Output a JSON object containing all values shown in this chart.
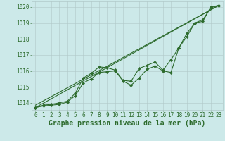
{
  "xlabel": "Graphe pression niveau de la mer (hPa)",
  "background_color": "#cce9e9",
  "grid_color": "#b0c8c8",
  "line_color": "#2d6b2d",
  "xlim": [
    -0.5,
    23.5
  ],
  "ylim": [
    1013.55,
    1020.35
  ],
  "yticks": [
    1014,
    1015,
    1016,
    1017,
    1018,
    1019,
    1020
  ],
  "xticks": [
    0,
    1,
    2,
    3,
    4,
    5,
    6,
    7,
    8,
    9,
    10,
    11,
    12,
    13,
    14,
    15,
    16,
    17,
    18,
    19,
    20,
    21,
    22,
    23
  ],
  "series": [
    {
      "x": [
        0,
        23
      ],
      "y": [
        1013.7,
        1020.1
      ],
      "style": "solid",
      "marker": null,
      "linewidth": 0.8
    },
    {
      "x": [
        0,
        1,
        2,
        3,
        4,
        5,
        6,
        7,
        8,
        9,
        10,
        11,
        12,
        13,
        14,
        15,
        16,
        17,
        18,
        19,
        20,
        21,
        22,
        23
      ],
      "y": [
        1013.7,
        1013.8,
        1013.85,
        1013.9,
        1014.05,
        1014.45,
        1015.25,
        1015.5,
        1015.9,
        1015.95,
        1016.0,
        1015.35,
        1015.1,
        1015.55,
        1016.1,
        1016.3,
        1016.0,
        1015.9,
        1017.45,
        1018.15,
        1019.0,
        1019.1,
        1020.0,
        1020.1
      ],
      "style": "solid",
      "marker": "D",
      "markersize": 2.2,
      "linewidth": 0.8
    },
    {
      "x": [
        0,
        1,
        2,
        3,
        4,
        5,
        6,
        7,
        8,
        9,
        10,
        11,
        12,
        13,
        14,
        15,
        16,
        17,
        18,
        19,
        20,
        21,
        22,
        23
      ],
      "y": [
        1013.7,
        1013.85,
        1013.9,
        1014.0,
        1014.1,
        1014.6,
        1015.55,
        1015.85,
        1016.25,
        1016.2,
        1016.05,
        1015.4,
        1015.35,
        1016.15,
        1016.35,
        1016.55,
        1016.05,
        1016.7,
        1017.45,
        1018.35,
        1019.0,
        1019.2,
        1019.95,
        1020.1
      ],
      "style": "solid",
      "marker": "D",
      "markersize": 2.2,
      "linewidth": 0.8
    },
    {
      "x": [
        0,
        23
      ],
      "y": [
        1013.85,
        1020.1
      ],
      "style": "solid",
      "marker": null,
      "linewidth": 0.8
    }
  ],
  "xlabel_fontsize": 7,
  "xlabel_fontweight": "bold",
  "xlabel_color": "#2d6b2d",
  "tick_labelsize": 5.5,
  "tick_color": "#2d6b2d"
}
